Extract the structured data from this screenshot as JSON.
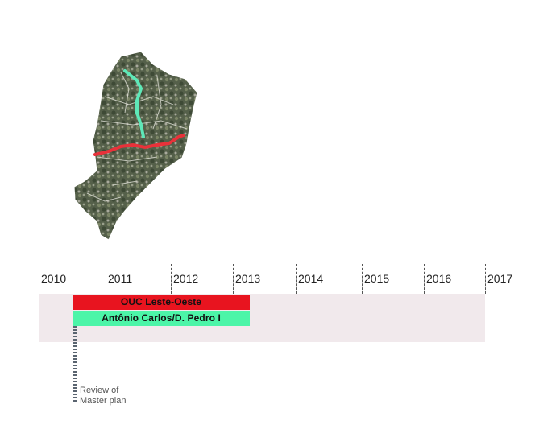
{
  "timeline": {
    "years": [
      "2010",
      "2011",
      "2012",
      "2013",
      "2014",
      "2015",
      "2016",
      "2017"
    ],
    "bars": [
      {
        "label": "OUC Leste-Oeste",
        "start_year": 2010.5,
        "end_year": 2013.0,
        "color": "#e8141f"
      },
      {
        "label": "Antônio Carlos/D. Pedro I",
        "start_year": 2010.5,
        "end_year": 2013.0,
        "color": "#4cf5a8"
      }
    ],
    "milestone": {
      "label_line1": "Review of",
      "label_line2": "Master plan",
      "year": 2010.5
    },
    "band_color": "#f1e9ec"
  },
  "map": {
    "routes": [
      {
        "name_color": "#e8323a",
        "kind": "east-west"
      },
      {
        "name_color": "#5ee8b8",
        "kind": "north-south"
      }
    ]
  }
}
